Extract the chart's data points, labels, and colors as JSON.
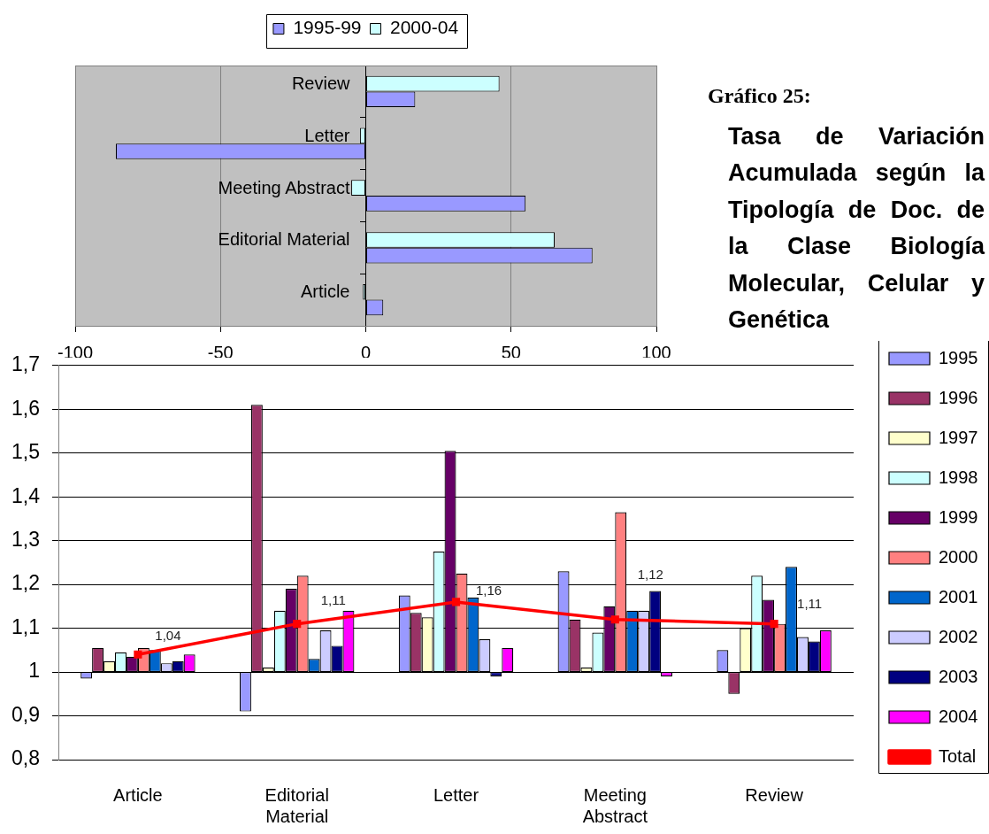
{
  "chart_data": [
    {
      "type": "bar",
      "orientation": "horizontal",
      "categories": [
        "Review",
        "Letter",
        "Meeting Abstract",
        "Editorial Material",
        "Article"
      ],
      "series": [
        {
          "name": "1995-99",
          "color": "#9999ff",
          "values": [
            17,
            -86,
            55,
            78,
            6
          ]
        },
        {
          "name": "2000-04",
          "color": "#ccffff",
          "values": [
            46,
            -2,
            -5,
            65,
            -1
          ]
        }
      ],
      "xlim": [
        -100,
        100
      ],
      "xticks": [
        -100,
        -50,
        0,
        50,
        100
      ],
      "grid": "x",
      "legend": "top"
    },
    {
      "type": "other",
      "title": "Gráfico 25:",
      "subtitle": "Tasa de Variación Acumulada según la Tipología de Doc. de la Clase Biología Molecular, Celular y Genética"
    },
    {
      "type": "bar",
      "categories": [
        "Article",
        "Editorial Material",
        "Letter",
        "Meeting Abstract",
        "Review"
      ],
      "series": [
        {
          "name": "1995",
          "color": "#9999ff",
          "base": [
            1,
            1,
            1,
            1,
            1
          ],
          "values": [
            -0.015,
            -0.09,
            0.175,
            0.23,
            0.05
          ]
        },
        {
          "name": "1996",
          "color": "#993366",
          "base": [
            1,
            1,
            1,
            1,
            1
          ],
          "values": [
            0.055,
            0.61,
            0.135,
            0.12,
            -0.05
          ]
        },
        {
          "name": "1997",
          "color": "#ffffcc",
          "base": [
            1,
            1,
            1,
            1,
            1
          ],
          "values": [
            0.025,
            0.01,
            0.125,
            0.01,
            0.1
          ]
        },
        {
          "name": "1998",
          "color": "#ccffff",
          "base": [
            1,
            1,
            1,
            1,
            1
          ],
          "values": [
            0.045,
            0.14,
            0.275,
            0.09,
            0.22
          ]
        },
        {
          "name": "1999",
          "color": "#660066",
          "base": [
            1,
            1,
            1,
            1,
            1
          ],
          "values": [
            0.035,
            0.19,
            0.505,
            0.15,
            0.165
          ]
        },
        {
          "name": "2000",
          "color": "#ff8080",
          "base": [
            1,
            1,
            1,
            1,
            1
          ],
          "values": [
            0.055,
            0.22,
            0.225,
            0.365,
            0.11
          ]
        },
        {
          "name": "2001",
          "color": "#0066cc",
          "base": [
            1,
            1,
            1,
            1,
            1
          ],
          "values": [
            0.05,
            0.03,
            0.17,
            0.14,
            0.24
          ]
        },
        {
          "name": "2002",
          "color": "#ccccff",
          "base": [
            1,
            1,
            1,
            1,
            1
          ],
          "values": [
            0.02,
            0.095,
            0.075,
            0.14,
            0.08
          ]
        },
        {
          "name": "2003",
          "color": "#000080",
          "base": [
            1,
            1,
            1,
            1,
            1
          ],
          "values": [
            0.025,
            0.06,
            -0.01,
            0.185,
            0.07
          ]
        },
        {
          "name": "2004",
          "color": "#ff00ff",
          "base": [
            1,
            1,
            1,
            1,
            1
          ],
          "values": [
            0.04,
            0.14,
            0.055,
            -0.01,
            0.095
          ]
        },
        {
          "name": "Total",
          "type": "line",
          "color": "#ff0000",
          "values": [
            1.04,
            1.11,
            1.16,
            1.12,
            1.11
          ],
          "value_labels": [
            "1,04",
            "1,11",
            "1,16",
            "1,12",
            "1,11"
          ]
        }
      ],
      "ylim": [
        0.8,
        1.7
      ],
      "yticks": [
        {
          "value": 0.8,
          "label": "0,8"
        },
        {
          "value": 0.9,
          "label": "0,9"
        },
        1,
        {
          "value": 1.1,
          "label": "1,1"
        },
        {
          "value": 1.2,
          "label": "1,2"
        },
        {
          "value": 1.3,
          "label": "1,3"
        },
        {
          "value": 1.4,
          "label": "1,4"
        },
        {
          "value": 1.5,
          "label": "1,5"
        },
        {
          "value": 1.6,
          "label": "1,6"
        },
        {
          "value": 1.7,
          "label": "1,7"
        }
      ],
      "grid": "y",
      "legend": "right",
      "marker": "square"
    }
  ]
}
